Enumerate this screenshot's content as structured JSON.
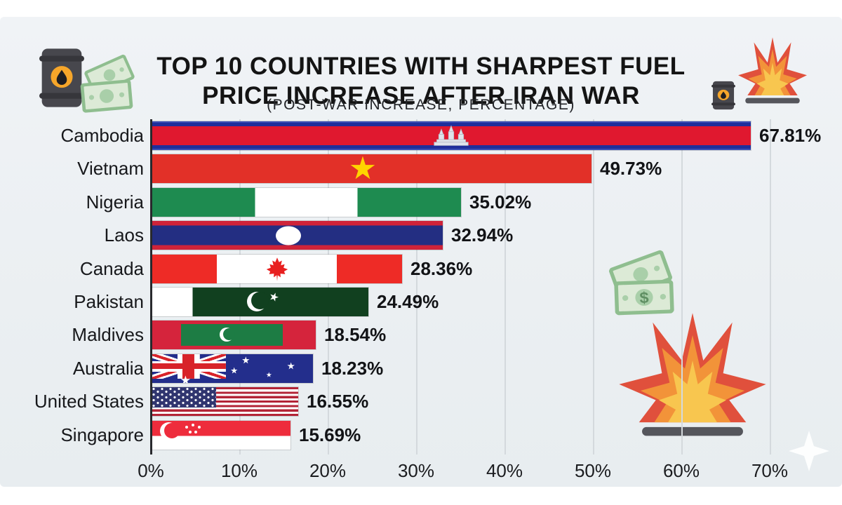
{
  "title": {
    "line1": "TOP 10 COUNTRIES WITH SHARPEST FUEL",
    "line2": "PRICE INCREASE AFTER IRAN WAR",
    "subtitle": "(POST-WAR INCREASE, PERCENTAGE)"
  },
  "chart_data": {
    "type": "bar",
    "orientation": "horizontal",
    "categories": [
      "Cambodia",
      "Vietnam",
      "Nigeria",
      "Laos",
      "Canada",
      "Pakistan",
      "Maldives",
      "Australia",
      "United States",
      "Singapore"
    ],
    "values": [
      67.81,
      49.73,
      35.02,
      32.94,
      28.36,
      24.49,
      18.54,
      18.23,
      16.55,
      15.69
    ],
    "value_labels": [
      "67.81%",
      "49.73%",
      "35.02%",
      "32.94%",
      "28.36%",
      "24.49%",
      "18.54%",
      "18.23%",
      "16.55%",
      "15.69%"
    ],
    "flags": [
      "cambodia",
      "vietnam",
      "nigeria",
      "laos",
      "canada",
      "pakistan",
      "maldives",
      "australia",
      "united-states",
      "singapore"
    ],
    "x_ticks": [
      "0%",
      "10%",
      "20%",
      "30%",
      "40%",
      "50%",
      "60%",
      "70%"
    ],
    "xlim": [
      0,
      70
    ],
    "xlabel": "",
    "ylabel": "",
    "grid": true,
    "legend": false,
    "bar_style": "country-flag"
  },
  "decorations": {
    "top_left": [
      "oil-barrel-icon",
      "money-bills-icon"
    ],
    "top_right": [
      "oil-barrel-icon",
      "explosion-icon"
    ],
    "middle_right": [
      "money-bills-icon"
    ],
    "bottom_right": [
      "explosion-icon",
      "sparkle-icon"
    ]
  },
  "colors": {
    "grid": "#d4d9dd",
    "axis": "#28292d",
    "cambodia_red": "#e0182f",
    "vietnam_red": "#e23028",
    "vietnam_yellow": "#ffd400",
    "nigeria_green": "#1e8b50",
    "laos_red": "#cf2339",
    "laos_blue": "#232e82",
    "canada_red": "#ee2b26",
    "pakistan_green": "#11401f",
    "maldives_red": "#d5243c",
    "maldives_green": "#1d7c44",
    "australia_blue": "#232e8c",
    "jack_red": "#d8232a",
    "us_navy": "#30356f",
    "us_red": "#b32437",
    "singapore_red": "#ee2c3c",
    "barrel_gray": "#47474d",
    "barrel_dark": "#36363b",
    "barrel_orange": "#f6a62a",
    "money_green": "#8fbe8f",
    "money_light": "#dcead6",
    "money_mid": "#a9cfa9",
    "flame_red": "#e0503c",
    "flame_orange": "#f29339",
    "flame_yellow": "#f8c64f",
    "base_gray": "#55565c"
  }
}
